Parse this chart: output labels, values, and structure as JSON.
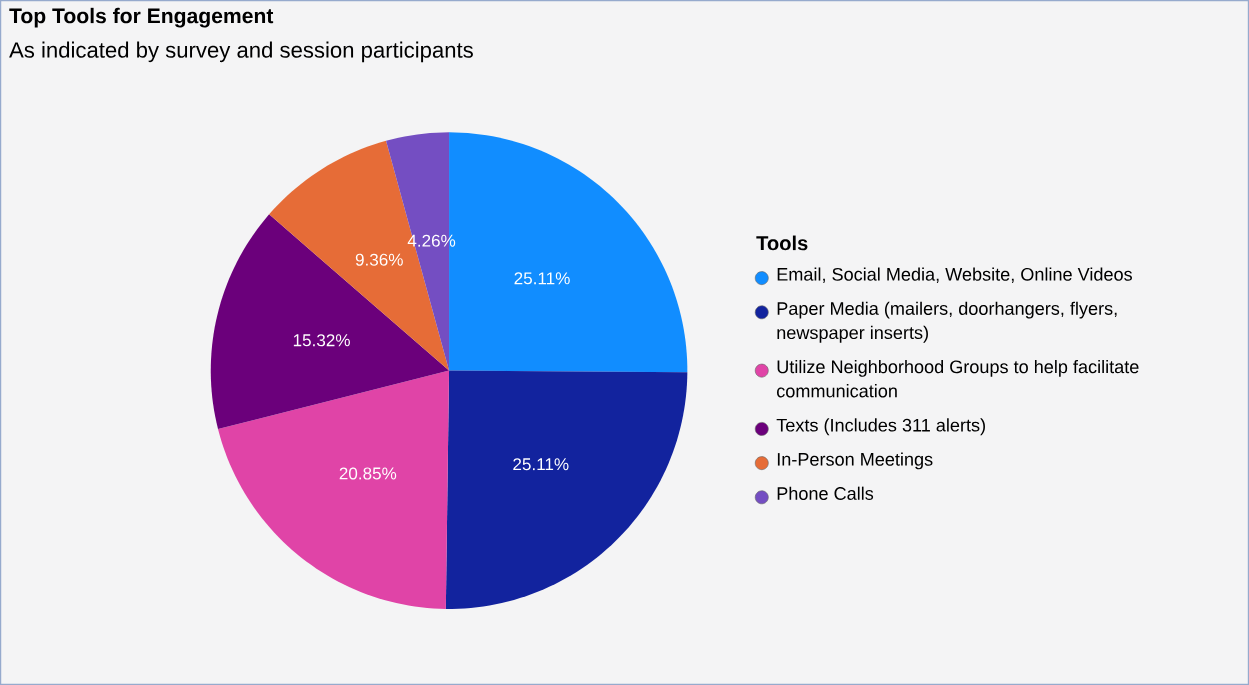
{
  "chart_data": {
    "type": "pie",
    "title": "Top Tools for Engagement",
    "subtitle": "As indicated by survey and session participants",
    "legend_title": "Tools",
    "legend": "right",
    "categories": [
      "Email, Social Media, Website, Online Videos",
      "Paper Media (mailers, doorhangers, flyers, newspaper inserts)",
      "Utilize Neighborhood Groups to help facilitate communication",
      "Texts (Includes 311 alerts)",
      "In-Person Meetings",
      "Phone Calls"
    ],
    "values": [
      25.11,
      25.11,
      20.85,
      15.32,
      9.36,
      4.26
    ],
    "colors": [
      "#118dff",
      "#12239e",
      "#e044a7",
      "#6b007b",
      "#e66c37",
      "#744ec2"
    ],
    "value_labels": [
      "25.11%",
      "25.11%",
      "20.85%",
      "15.32%",
      "9.36%",
      "4.26%"
    ]
  }
}
